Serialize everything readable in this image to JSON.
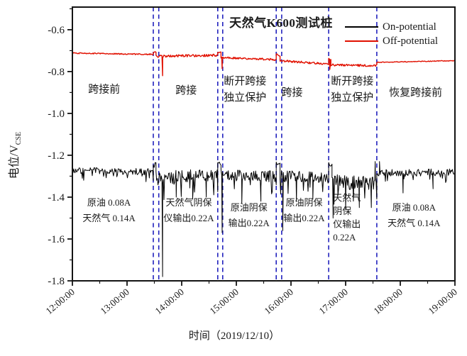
{
  "title": "天然气K600测试桩",
  "axes": {
    "ylabel_main": "电位/V",
    "ylabel_sub": "CSE",
    "xlabel": "时间（2019/12/10）"
  },
  "chart_data": {
    "type": "line",
    "title": "天然气K600测试桩",
    "xlabel": "时间（2019/12/10）",
    "ylabel": "电位/V_CSE",
    "ylabel_main": "电位/V",
    "ylabel_sub": "CSE",
    "x_tick_labels": [
      "12:00:00",
      "13:00:00",
      "14:00:00",
      "15:00:00",
      "16:00:00",
      "17:00:00",
      "18:00:00",
      "19:00:00"
    ],
    "x_tick_hours": [
      12,
      13,
      14,
      15,
      16,
      17,
      18,
      19
    ],
    "x_minor_hours": [
      12.5,
      13.5,
      14.5,
      15.5,
      16.5,
      17.5,
      18.5
    ],
    "y_ticks": [
      -0.6,
      -0.8,
      -1.0,
      -1.2,
      -1.4,
      -1.6,
      -1.8
    ],
    "y_minor_ticks": [
      -0.5,
      -0.7,
      -0.9,
      -1.1,
      -1.3,
      -1.5,
      -1.7
    ],
    "xlim": [
      12,
      19
    ],
    "ylim": [
      -1.8,
      -0.492
    ],
    "grid": false,
    "legend_position": "top-right",
    "frame_color": "#141414",
    "divider_color": "#2121bd",
    "divider_times": [
      13.48,
      13.58,
      14.66,
      14.75,
      15.73,
      15.83,
      16.69,
      17.57
    ],
    "regions": [
      {
        "t": 12.58,
        "v": -0.9,
        "lines": [
          "跨接前"
        ]
      },
      {
        "t": 14.08,
        "v": -0.905,
        "lines": [
          "跨接"
        ]
      },
      {
        "t": 15.16,
        "v": -0.862,
        "lines": [
          "断开跨接",
          "独立保护"
        ]
      },
      {
        "t": 16.02,
        "v": -0.915,
        "lines": [
          "跨接"
        ]
      },
      {
        "t": 17.12,
        "v": -0.862,
        "lines": [
          "断开跨接",
          "独立保护"
        ]
      },
      {
        "t": 18.28,
        "v": -0.915,
        "lines": [
          "恢复跨接前"
        ]
      }
    ],
    "annotations": [
      {
        "t": 12.67,
        "v": -1.44,
        "align": "middle",
        "small": false,
        "lines": [
          "原油 0.08A",
          "天然气 0.14A"
        ]
      },
      {
        "t": 14.13,
        "v": -1.44,
        "align": "middle",
        "small": false,
        "lines": [
          "天然气阴保",
          "仪输出0.22A"
        ]
      },
      {
        "t": 15.23,
        "v": -1.465,
        "align": "middle",
        "small": false,
        "lines": [
          "原油阴保",
          "输出0.22A"
        ]
      },
      {
        "t": 16.24,
        "v": -1.44,
        "align": "middle",
        "small": false,
        "lines": [
          "原油阴保",
          "输出0.22A"
        ]
      },
      {
        "t": 16.77,
        "v": -1.418,
        "align": "start",
        "small": true,
        "lines": [
          "天然气",
          "阴保",
          "仪输出",
          "0.22A"
        ]
      },
      {
        "t": 18.25,
        "v": -1.465,
        "align": "middle",
        "small": false,
        "lines": [
          "原油 0.08A",
          "天然气 0.14A"
        ]
      }
    ],
    "series": [
      {
        "name": "On-potential",
        "color": "#000000",
        "width": 1,
        "spiky": true,
        "segments": [
          {
            "t0": 12.0,
            "t1": 13.48,
            "v0": -1.272,
            "v1": -1.28,
            "noise": 0.016
          },
          {
            "t0": 13.48,
            "t1": 13.53,
            "v0": -1.242,
            "v1": -1.238,
            "noise": 0.01
          },
          {
            "t0": 13.53,
            "t1": 14.66,
            "v0": -1.31,
            "v1": -1.298,
            "noise": 0.034
          },
          {
            "t0": 14.66,
            "t1": 14.72,
            "v0": -1.236,
            "v1": -1.24,
            "noise": 0.01
          },
          {
            "t0": 14.72,
            "t1": 15.73,
            "v0": -1.296,
            "v1": -1.302,
            "noise": 0.027
          },
          {
            "t0": 15.73,
            "t1": 15.8,
            "v0": -1.238,
            "v1": -1.242,
            "noise": 0.01
          },
          {
            "t0": 15.8,
            "t1": 16.69,
            "v0": -1.3,
            "v1": -1.306,
            "noise": 0.027
          },
          {
            "t0": 16.69,
            "t1": 16.75,
            "v0": -1.24,
            "v1": -1.244,
            "noise": 0.01
          },
          {
            "t0": 16.75,
            "t1": 17.57,
            "v0": -1.326,
            "v1": -1.332,
            "noise": 0.036
          },
          {
            "t0": 17.57,
            "t1": 19.0,
            "v0": -1.286,
            "v1": -1.28,
            "noise": 0.017
          }
        ],
        "spikes": [
          {
            "t": 13.65,
            "v": -1.78
          },
          {
            "t": 14.74,
            "v": -1.57
          },
          {
            "t": 15.85,
            "v": -1.56
          },
          {
            "t": 16.77,
            "v": -1.5
          },
          {
            "t": 13.9,
            "v": -1.4
          },
          {
            "t": 14.2,
            "v": -1.41
          },
          {
            "t": 14.45,
            "v": -1.4
          },
          {
            "t": 15.1,
            "v": -1.43
          },
          {
            "t": 15.45,
            "v": -1.42
          },
          {
            "t": 16.1,
            "v": -1.42
          },
          {
            "t": 16.4,
            "v": -1.41
          },
          {
            "t": 17.0,
            "v": -1.46
          },
          {
            "t": 17.25,
            "v": -1.45
          },
          {
            "t": 17.47,
            "v": -1.45
          },
          {
            "t": 17.54,
            "v": -1.23
          },
          {
            "t": 17.62,
            "v": -1.23
          },
          {
            "t": 18.05,
            "v": -1.38
          },
          {
            "t": 18.6,
            "v": -1.36
          }
        ]
      },
      {
        "name": "Off-potential",
        "color": "#e11000",
        "width": 1.4,
        "spiky": false,
        "segments": [
          {
            "t0": 12.0,
            "t1": 13.48,
            "v0": -0.712,
            "v1": -0.718,
            "noise": 0.0028
          },
          {
            "t0": 13.48,
            "t1": 13.53,
            "v0": -0.706,
            "v1": -0.708,
            "noise": 0.003
          },
          {
            "t0": 13.53,
            "t1": 14.66,
            "v0": -0.727,
            "v1": -0.722,
            "noise": 0.0055
          },
          {
            "t0": 14.66,
            "t1": 14.72,
            "v0": -0.706,
            "v1": -0.71,
            "noise": 0.003
          },
          {
            "t0": 14.72,
            "t1": 15.73,
            "v0": -0.733,
            "v1": -0.743,
            "noise": 0.005
          },
          {
            "t0": 15.73,
            "t1": 15.8,
            "v0": -0.718,
            "v1": -0.724,
            "noise": 0.004
          },
          {
            "t0": 15.8,
            "t1": 16.69,
            "v0": -0.748,
            "v1": -0.764,
            "noise": 0.005
          },
          {
            "t0": 16.69,
            "t1": 16.73,
            "v0": -0.738,
            "v1": -0.742,
            "noise": 0.003
          },
          {
            "t0": 16.73,
            "t1": 17.57,
            "v0": -0.768,
            "v1": -0.772,
            "noise": 0.005
          },
          {
            "t0": 17.57,
            "t1": 19.0,
            "v0": -0.756,
            "v1": -0.748,
            "noise": 0.0018
          }
        ],
        "spikes": [
          {
            "t": 13.65,
            "v": -0.82
          },
          {
            "t": 14.74,
            "v": -0.786
          },
          {
            "t": 16.71,
            "v": -0.79
          }
        ]
      }
    ]
  }
}
